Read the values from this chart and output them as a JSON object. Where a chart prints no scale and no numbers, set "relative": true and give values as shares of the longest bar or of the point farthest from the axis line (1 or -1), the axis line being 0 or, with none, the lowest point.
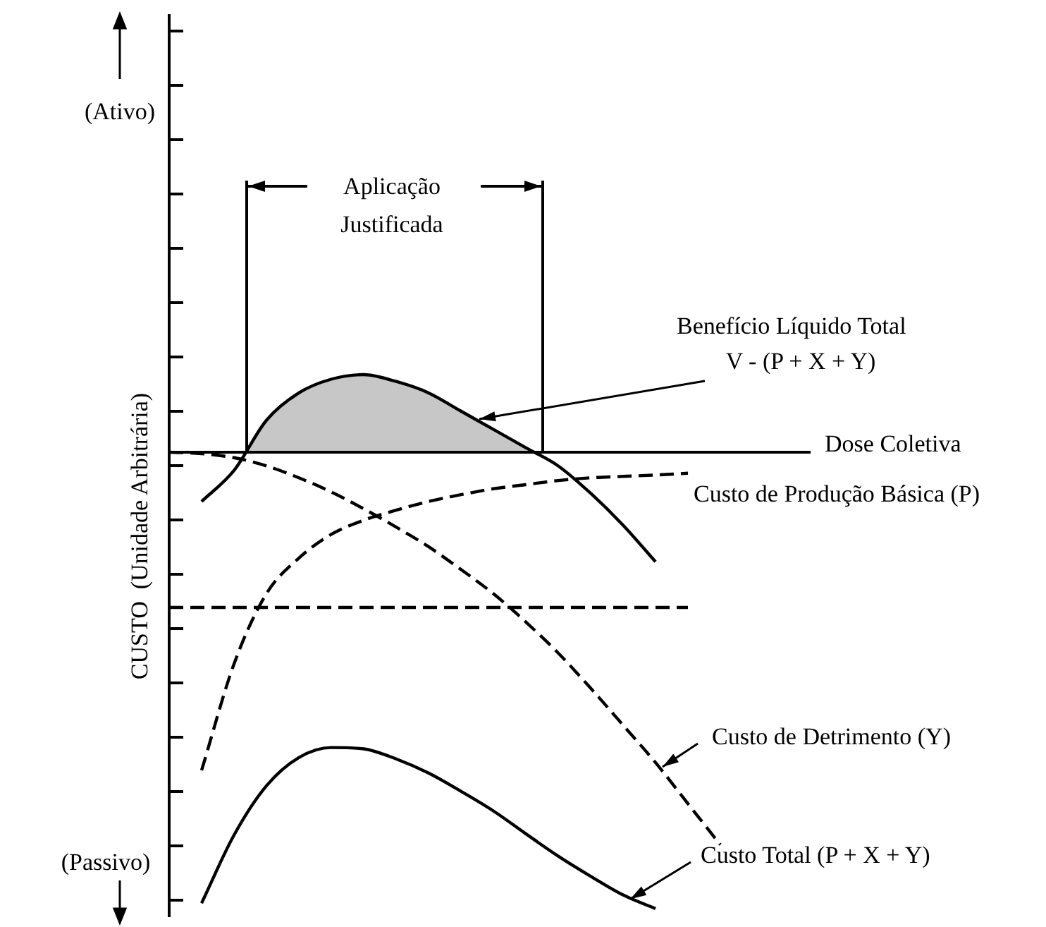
{
  "chart_data": {
    "type": "line",
    "relative": true,
    "xlabel": "Dose Coletiva",
    "ylabel": "CUSTO  (Unidade Arbitrária)",
    "legend": false,
    "grid": false,
    "marker": "none",
    "categories": [
      null,
      null,
      null,
      null,
      null,
      null,
      null,
      null,
      null,
      null,
      null,
      null,
      null,
      null,
      null,
      null,
      null,
      null,
      null,
      null,
      null
    ],
    "series": [
      {
        "name": "Benefício Líquido Total\nV - (P + X + Y)",
        "type": "area",
        "color": "#000000",
        "line_style": "solid",
        "values": [
          null,
          -0.108,
          -0.04,
          0.07,
          0.13,
          0.16,
          0.17,
          0.155,
          0.13,
          0.09,
          0.05,
          0.01,
          -0.03,
          -0.09,
          -0.16,
          -0.24,
          null,
          null,
          null,
          null,
          null
        ]
      },
      {
        "name": "Custo de Produção Básica (P)",
        "color": "#000000",
        "line_style": "dashed",
        "values": [
          null,
          -0.697,
          -0.464,
          -0.31,
          -0.232,
          -0.18,
          -0.149,
          -0.127,
          -0.108,
          -0.093,
          -0.08,
          -0.071,
          -0.062,
          -0.056,
          -0.053,
          -0.05,
          -0.046,
          null,
          null,
          null,
          null
        ]
      },
      {
        "name": "Custo de Detrimento (Y)",
        "color": "#000000",
        "line_style": "dashed",
        "values": [
          0,
          -0.003,
          -0.012,
          -0.03,
          -0.056,
          -0.087,
          -0.124,
          -0.164,
          -0.207,
          -0.257,
          -0.31,
          -0.372,
          -0.44,
          -0.517,
          -0.598,
          -0.68,
          -0.77,
          -0.86,
          null,
          null,
          null
        ]
      },
      {
        "color": "#000000",
        "line_style": "dashed",
        "values": [
          -0.34,
          -0.34,
          -0.34,
          -0.34,
          -0.34,
          -0.34,
          -0.34,
          -0.34,
          -0.34,
          -0.34,
          -0.34,
          -0.34,
          -0.34,
          -0.34,
          -0.34,
          -0.34,
          -0.34,
          null,
          null,
          null,
          null
        ]
      },
      {
        "name": "Custo Total (P + X + Y)",
        "color": "#000000",
        "line_style": "solid",
        "values": [
          null,
          -0.988,
          -0.839,
          -0.731,
          -0.669,
          -0.647,
          -0.65,
          -0.672,
          -0.703,
          -0.743,
          -0.786,
          -0.836,
          -0.885,
          -0.929,
          -0.97,
          -1,
          null,
          null,
          null,
          null,
          null
        ]
      }
    ],
    "annotations": [
      "(Ativo)",
      "(Passivo)",
      "Aplicação\nJustificada"
    ]
  }
}
